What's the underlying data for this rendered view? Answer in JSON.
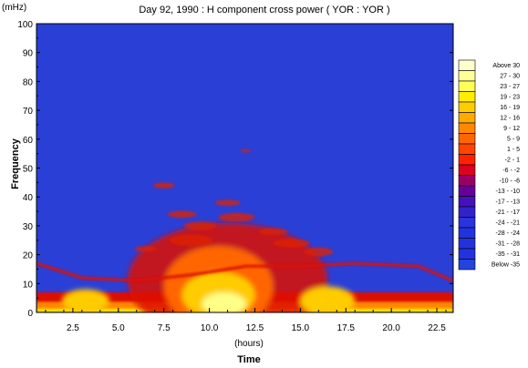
{
  "chart_data": {
    "type": "heatmap",
    "title": "Day 92, 1990 :  H component cross power ( YOR : YOR )",
    "ylabel": "Frequency",
    "yunit": "(mHz)",
    "xunit": "(hours)",
    "xlabel": "Time",
    "xlim": [
      0.5,
      23.4
    ],
    "ylim": [
      0,
      100
    ],
    "xticks": [
      2.5,
      5.0,
      7.5,
      10.0,
      12.5,
      15.0,
      17.5,
      20.0,
      22.5
    ],
    "xtick_labels": [
      "2.5",
      "5.0",
      "7.5",
      "10.0",
      "12.5",
      "15.0",
      "17.5",
      "20.0",
      "22.5"
    ],
    "yticks": [
      0,
      10,
      20,
      30,
      40,
      50,
      60,
      70,
      80,
      90,
      100
    ],
    "ytick_labels": [
      "0",
      "10",
      "20",
      "30",
      "40",
      "50",
      "60",
      "70",
      "80",
      "90",
      "100"
    ],
    "legend_position": "right",
    "legend": [
      {
        "label": "Above  30",
        "color": "#ffffcc"
      },
      {
        "label": "27 -  30",
        "color": "#ffff99"
      },
      {
        "label": "23 -  27",
        "color": "#ffff55"
      },
      {
        "label": "19 -  23",
        "color": "#ffee00"
      },
      {
        "label": "16 -  19",
        "color": "#ffcc00"
      },
      {
        "label": "12 -  16",
        "color": "#ffaa00"
      },
      {
        "label": "9 -  12",
        "color": "#ff8800"
      },
      {
        "label": "5 -   9",
        "color": "#ff6600"
      },
      {
        "label": "1 -   5",
        "color": "#ff4400"
      },
      {
        "label": "-2 -   1",
        "color": "#ff2200"
      },
      {
        "label": "-6 -  -2",
        "color": "#dd0022"
      },
      {
        "label": "-10 -  -6",
        "color": "#990066"
      },
      {
        "label": "-13 - -10",
        "color": "#660099"
      },
      {
        "label": "-17 - -13",
        "color": "#4411bb"
      },
      {
        "label": "-21 - -17",
        "color": "#3322cc"
      },
      {
        "label": "-24 - -21",
        "color": "#2a33dd"
      },
      {
        "label": "-28 - -24",
        "color": "#2233dd"
      },
      {
        "label": "-31 - -28",
        "color": "#2233dd"
      },
      {
        "label": "-35 - -31",
        "color": "#2233dd"
      },
      {
        "label": "Below  -35",
        "color": "#2244dd"
      }
    ],
    "background_color": "#2a3fd6",
    "features": [
      {
        "name": "low-frequency band",
        "x_range": [
          0.5,
          23.4
        ],
        "y_range": [
          0,
          6
        ],
        "level": "9 -  12"
      },
      {
        "name": "main enhancement",
        "x_center": 10.5,
        "y_center": 10,
        "level": "Above  30"
      },
      {
        "name": "Pc band trace",
        "x_range": [
          0.5,
          23.4
        ],
        "y_approx": [
          17,
          12,
          11,
          13,
          16,
          16,
          17,
          16,
          11
        ]
      }
    ]
  }
}
